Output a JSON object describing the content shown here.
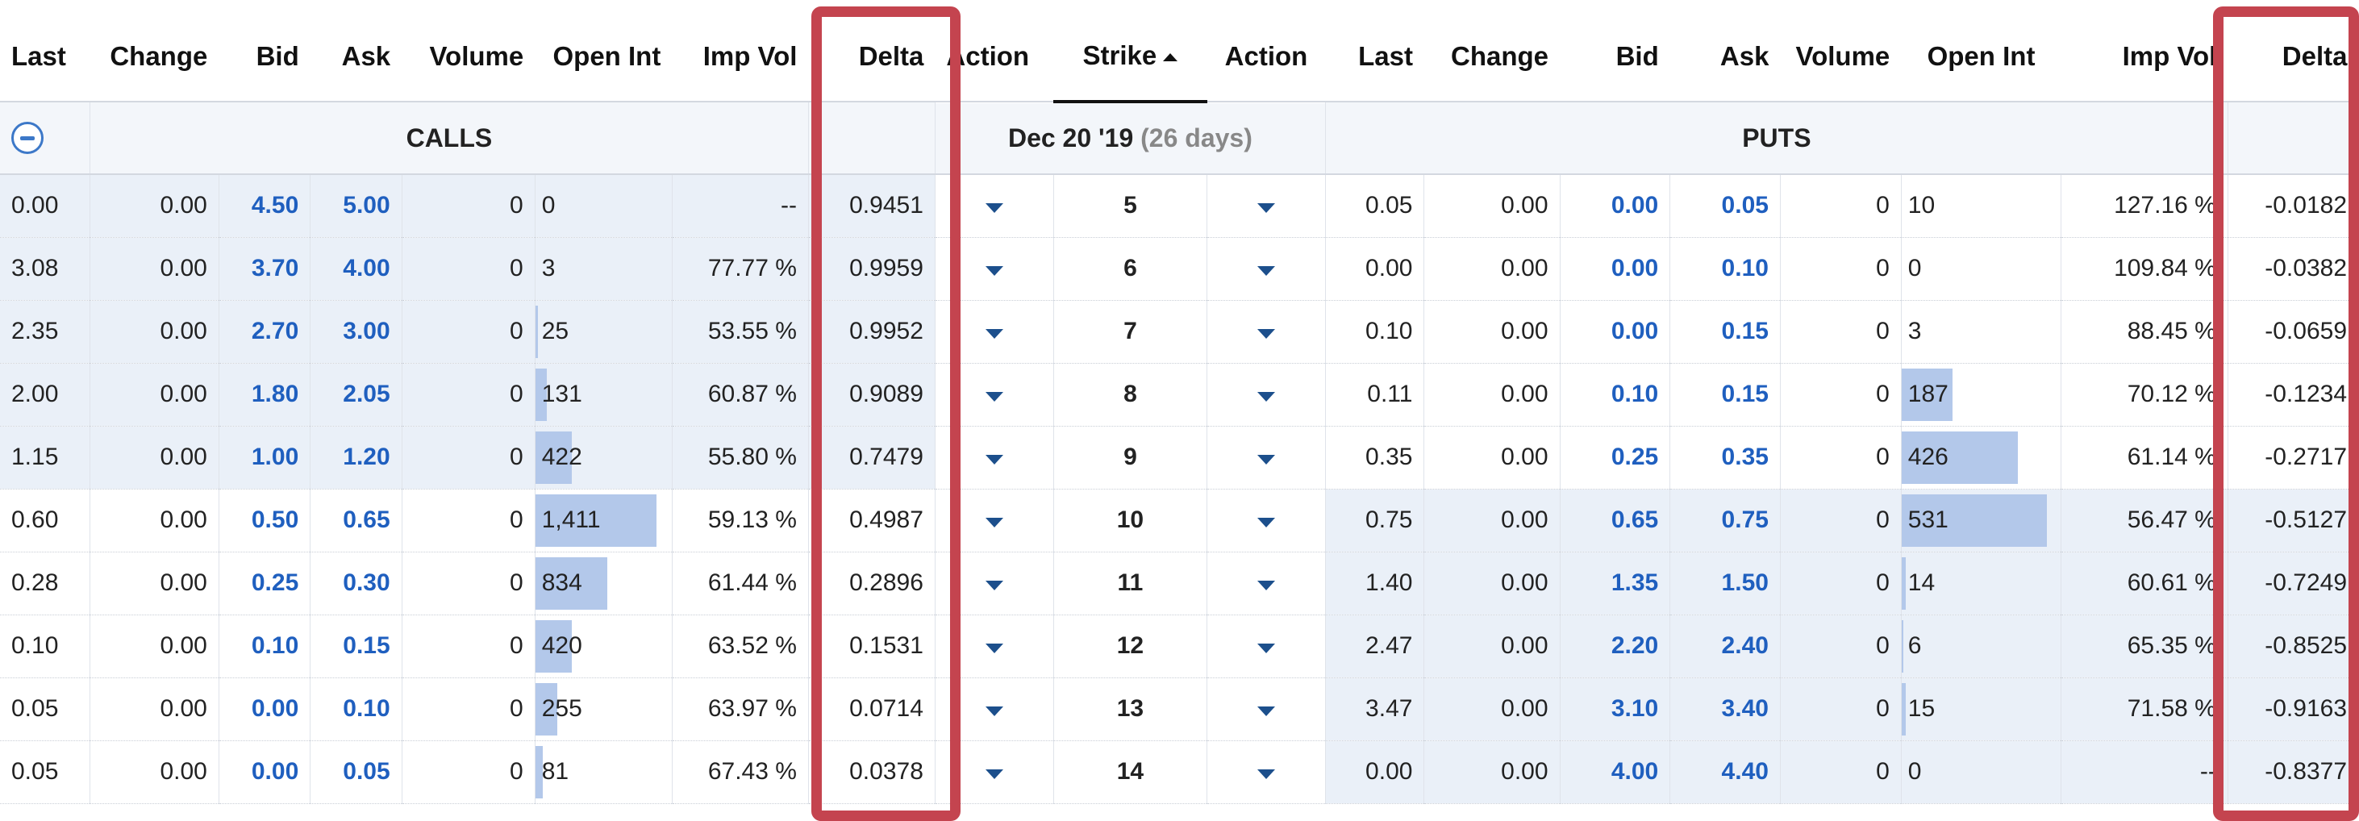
{
  "headers": {
    "calls": [
      "Last",
      "Change",
      "Bid",
      "Ask",
      "Volume",
      "Open Int",
      "Imp Vol",
      "Delta"
    ],
    "action_left": "Action",
    "strike": "Strike",
    "action_right": "Action",
    "puts": [
      "Last",
      "Change",
      "Bid",
      "Ask",
      "Volume",
      "Open Int",
      "Imp Vol",
      "Delta"
    ]
  },
  "group": {
    "calls_label": "CALLS",
    "expiry": "Dec 20 '19",
    "days": "(26 days)",
    "puts_label": "PUTS"
  },
  "rows": [
    {
      "strike": "5",
      "calls": {
        "last": "0.00",
        "change": "0.00",
        "bid": "4.50",
        "ask": "5.00",
        "volume": "0",
        "open_int": "0",
        "oi_bar": 0,
        "imp_vol": "--",
        "delta": "0.9451"
      },
      "puts": {
        "last": "0.05",
        "change": "0.00",
        "bid": "0.00",
        "ask": "0.05",
        "volume": "0",
        "open_int": "10",
        "oi_bar": 0,
        "imp_vol": "127.16 %",
        "delta": "-0.0182"
      }
    },
    {
      "strike": "6",
      "calls": {
        "last": "3.08",
        "change": "0.00",
        "bid": "3.70",
        "ask": "4.00",
        "volume": "0",
        "open_int": "3",
        "oi_bar": 0,
        "imp_vol": "77.77 %",
        "delta": "0.9959"
      },
      "puts": {
        "last": "0.00",
        "change": "0.00",
        "bid": "0.00",
        "ask": "0.10",
        "volume": "0",
        "open_int": "0",
        "oi_bar": 0,
        "imp_vol": "109.84 %",
        "delta": "-0.0382"
      }
    },
    {
      "strike": "7",
      "calls": {
        "last": "2.35",
        "change": "0.00",
        "bid": "2.70",
        "ask": "3.00",
        "volume": "0",
        "open_int": "25",
        "oi_bar": 0.02,
        "imp_vol": "53.55 %",
        "delta": "0.9952"
      },
      "puts": {
        "last": "0.10",
        "change": "0.00",
        "bid": "0.00",
        "ask": "0.15",
        "volume": "0",
        "open_int": "3",
        "oi_bar": 0,
        "imp_vol": "88.45 %",
        "delta": "-0.0659"
      }
    },
    {
      "strike": "8",
      "calls": {
        "last": "2.00",
        "change": "0.00",
        "bid": "1.80",
        "ask": "2.05",
        "volume": "0",
        "open_int": "131",
        "oi_bar": 0.09,
        "imp_vol": "60.87 %",
        "delta": "0.9089"
      },
      "puts": {
        "last": "0.11",
        "change": "0.00",
        "bid": "0.10",
        "ask": "0.15",
        "volume": "0",
        "open_int": "187",
        "oi_bar": 0.35,
        "imp_vol": "70.12 %",
        "delta": "-0.1234"
      }
    },
    {
      "strike": "9",
      "calls": {
        "last": "1.15",
        "change": "0.00",
        "bid": "1.00",
        "ask": "1.20",
        "volume": "0",
        "open_int": "422",
        "oi_bar": 0.3,
        "imp_vol": "55.80 %",
        "delta": "0.7479"
      },
      "puts": {
        "last": "0.35",
        "change": "0.00",
        "bid": "0.25",
        "ask": "0.35",
        "volume": "0",
        "open_int": "426",
        "oi_bar": 0.8,
        "imp_vol": "61.14 %",
        "delta": "-0.2717"
      }
    },
    {
      "strike": "10",
      "calls": {
        "last": "0.60",
        "change": "0.00",
        "bid": "0.50",
        "ask": "0.65",
        "volume": "0",
        "open_int": "1,411",
        "oi_bar": 1.0,
        "imp_vol": "59.13 %",
        "delta": "0.4987"
      },
      "puts": {
        "last": "0.75",
        "change": "0.00",
        "bid": "0.65",
        "ask": "0.75",
        "volume": "0",
        "open_int": "531",
        "oi_bar": 1.0,
        "imp_vol": "56.47 %",
        "delta": "-0.5127"
      }
    },
    {
      "strike": "11",
      "calls": {
        "last": "0.28",
        "change": "0.00",
        "bid": "0.25",
        "ask": "0.30",
        "volume": "0",
        "open_int": "834",
        "oi_bar": 0.59,
        "imp_vol": "61.44 %",
        "delta": "0.2896"
      },
      "puts": {
        "last": "1.40",
        "change": "0.00",
        "bid": "1.35",
        "ask": "1.50",
        "volume": "0",
        "open_int": "14",
        "oi_bar": 0.03,
        "imp_vol": "60.61 %",
        "delta": "-0.7249"
      }
    },
    {
      "strike": "12",
      "calls": {
        "last": "0.10",
        "change": "0.00",
        "bid": "0.10",
        "ask": "0.15",
        "volume": "0",
        "open_int": "420",
        "oi_bar": 0.3,
        "imp_vol": "63.52 %",
        "delta": "0.1531"
      },
      "puts": {
        "last": "2.47",
        "change": "0.00",
        "bid": "2.20",
        "ask": "2.40",
        "volume": "0",
        "open_int": "6",
        "oi_bar": 0.01,
        "imp_vol": "65.35 %",
        "delta": "-0.8525"
      }
    },
    {
      "strike": "13",
      "calls": {
        "last": "0.05",
        "change": "0.00",
        "bid": "0.00",
        "ask": "0.10",
        "volume": "0",
        "open_int": "255",
        "oi_bar": 0.18,
        "imp_vol": "63.97 %",
        "delta": "0.0714"
      },
      "puts": {
        "last": "3.47",
        "change": "0.00",
        "bid": "3.10",
        "ask": "3.40",
        "volume": "0",
        "open_int": "15",
        "oi_bar": 0.03,
        "imp_vol": "71.58 %",
        "delta": "-0.9163"
      }
    },
    {
      "strike": "14",
      "calls": {
        "last": "0.05",
        "change": "0.00",
        "bid": "0.00",
        "ask": "0.05",
        "volume": "0",
        "open_int": "81",
        "oi_bar": 0.06,
        "imp_vol": "67.43 %",
        "delta": "0.0378"
      },
      "puts": {
        "last": "0.00",
        "change": "0.00",
        "bid": "4.00",
        "ask": "4.40",
        "volume": "0",
        "open_int": "0",
        "oi_bar": 0,
        "imp_vol": "--",
        "delta": "-0.8377"
      }
    }
  ],
  "itm": {
    "calls_rows": [
      0,
      1,
      2,
      3,
      4
    ],
    "puts_rows": [
      5,
      6,
      7,
      8,
      9
    ]
  },
  "colors": {
    "highlight": "#c4444f",
    "bid_ask": "#1f5fbf",
    "itm_bg": "#eaf0f8",
    "oi_bar": "#b3c8ea",
    "action_caret": "#1c4f8c"
  }
}
